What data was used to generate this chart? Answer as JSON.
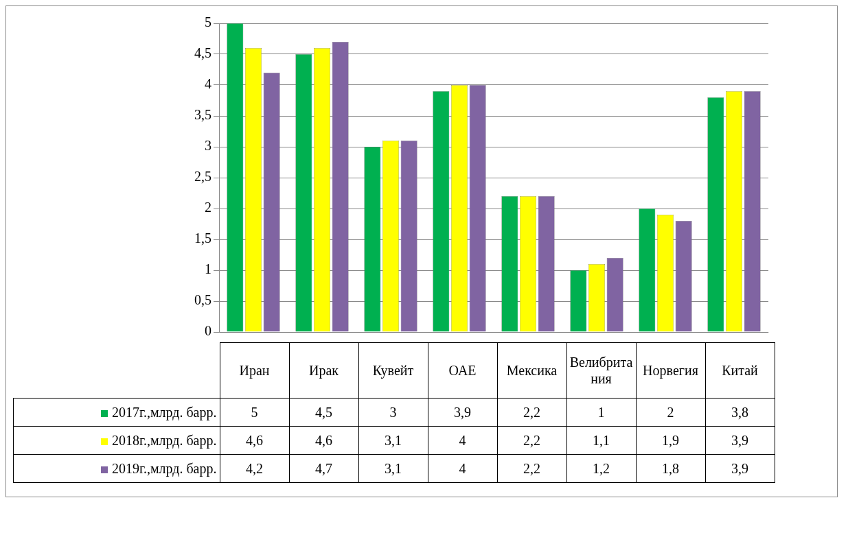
{
  "chart_data": {
    "type": "bar",
    "categories": [
      "Иран",
      "Ирак",
      "Кувейт",
      "ОАЕ",
      "Мексика",
      "Велибритания",
      "Норвегия",
      "Китай"
    ],
    "series": [
      {
        "name": "2017г.,млрд. барр.",
        "color": "#00b050",
        "values": [
          5,
          4.5,
          3,
          3.9,
          2.2,
          1,
          2,
          3.8
        ],
        "value_labels": [
          "5",
          "4,5",
          "3",
          "3,9",
          "2,2",
          "1",
          "2",
          "3,8"
        ]
      },
      {
        "name": "2018г.,млрд. барр.",
        "color": "#ffff00",
        "values": [
          4.6,
          4.6,
          3.1,
          4,
          2.2,
          1.1,
          1.9,
          3.9
        ],
        "value_labels": [
          "4,6",
          "4,6",
          "3,1",
          "4",
          "2,2",
          "1,1",
          "1,9",
          "3,9"
        ]
      },
      {
        "name": "2019г.,млрд. барр.",
        "color": "#8064a2",
        "values": [
          4.2,
          4.7,
          3.1,
          4,
          2.2,
          1.2,
          1.8,
          3.9
        ],
        "value_labels": [
          "4,2",
          "4,7",
          "3,1",
          "4",
          "2,2",
          "1,2",
          "1,8",
          "3,9"
        ]
      }
    ],
    "ylim": [
      0,
      5
    ],
    "yticks": [
      0,
      {
        "value": 0.5,
        "label": "0,5"
      },
      1,
      {
        "value": 1.5,
        "label": "1,5"
      },
      2,
      {
        "value": 2.5,
        "label": "2,5"
      },
      3,
      {
        "value": 3.5,
        "label": "3,5"
      },
      4,
      {
        "value": 4.5,
        "label": "4,5"
      },
      5
    ],
    "grid": "y",
    "legend": "bottom"
  }
}
